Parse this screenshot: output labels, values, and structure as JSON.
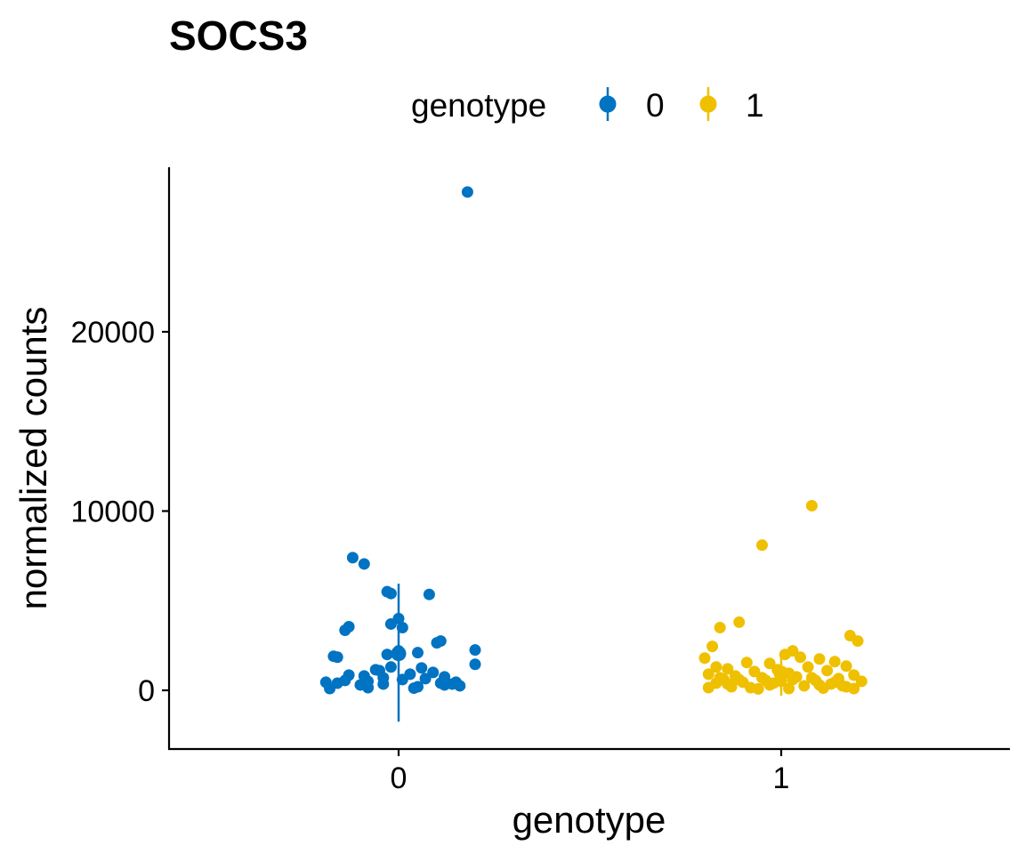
{
  "chart_data": {
    "type": "scatter",
    "title": "SOCS3",
    "xlabel": "genotype",
    "ylabel": "normalized counts",
    "categories": [
      "0",
      "1"
    ],
    "yticks": [
      0,
      10000,
      20000
    ],
    "ylim": [
      -3300,
      28700
    ],
    "grid": false,
    "legend": {
      "title": "genotype",
      "position": "top",
      "entries": [
        "0",
        "1"
      ]
    },
    "colors": {
      "0": "#0073C2",
      "1": "#EFC000"
    },
    "series": [
      {
        "name": "0",
        "points": [
          {
            "x": 0.18,
            "y": 27800
          },
          {
            "x": -0.12,
            "y": 7400
          },
          {
            "x": -0.09,
            "y": 7050
          },
          {
            "x": -0.03,
            "y": 5500
          },
          {
            "x": -0.02,
            "y": 5400
          },
          {
            "x": 0.08,
            "y": 5350
          },
          {
            "x": 0.0,
            "y": 4000
          },
          {
            "x": 0.01,
            "y": 3500
          },
          {
            "x": -0.13,
            "y": 3550
          },
          {
            "x": -0.14,
            "y": 3350
          },
          {
            "x": -0.02,
            "y": 3700
          },
          {
            "x": 0.11,
            "y": 2750
          },
          {
            "x": 0.1,
            "y": 2650
          },
          {
            "x": 0.2,
            "y": 2250
          },
          {
            "x": 0.05,
            "y": 2100
          },
          {
            "x": 0.0,
            "y": 2200
          },
          {
            "x": -0.17,
            "y": 1900
          },
          {
            "x": -0.16,
            "y": 1850
          },
          {
            "x": -0.03,
            "y": 2000
          },
          {
            "x": 0.2,
            "y": 1450
          },
          {
            "x": 0.06,
            "y": 1250
          },
          {
            "x": -0.02,
            "y": 1300
          },
          {
            "x": -0.05,
            "y": 1100
          },
          {
            "x": -0.06,
            "y": 1150
          },
          {
            "x": 0.09,
            "y": 1000
          },
          {
            "x": -0.13,
            "y": 850
          },
          {
            "x": -0.09,
            "y": 800
          },
          {
            "x": 0.03,
            "y": 900
          },
          {
            "x": 0.12,
            "y": 750
          },
          {
            "x": 0.07,
            "y": 650
          },
          {
            "x": -0.04,
            "y": 700
          },
          {
            "x": 0.01,
            "y": 600
          },
          {
            "x": -0.19,
            "y": 450
          },
          {
            "x": -0.16,
            "y": 400
          },
          {
            "x": -0.14,
            "y": 550
          },
          {
            "x": -0.1,
            "y": 300
          },
          {
            "x": -0.08,
            "y": 500
          },
          {
            "x": -0.04,
            "y": 350
          },
          {
            "x": 0.11,
            "y": 400
          },
          {
            "x": 0.15,
            "y": 450
          },
          {
            "x": 0.16,
            "y": 250
          },
          {
            "x": 0.12,
            "y": 300
          },
          {
            "x": 0.05,
            "y": 200
          },
          {
            "x": -0.18,
            "y": 100
          },
          {
            "x": -0.08,
            "y": 150
          },
          {
            "x": 0.04,
            "y": 120
          },
          {
            "x": 0.14,
            "y": 350
          }
        ],
        "summary": {
          "mean": 2050,
          "lower": -1750,
          "upper": 5950
        }
      },
      {
        "name": "1",
        "points": [
          {
            "x": 1.08,
            "y": 10300
          },
          {
            "x": 0.95,
            "y": 8100
          },
          {
            "x": 0.89,
            "y": 3800
          },
          {
            "x": 0.84,
            "y": 3500
          },
          {
            "x": 1.18,
            "y": 3050
          },
          {
            "x": 1.2,
            "y": 2750
          },
          {
            "x": 0.82,
            "y": 2450
          },
          {
            "x": 1.03,
            "y": 2200
          },
          {
            "x": 1.01,
            "y": 2000
          },
          {
            "x": 0.8,
            "y": 1800
          },
          {
            "x": 1.05,
            "y": 1850
          },
          {
            "x": 1.1,
            "y": 1750
          },
          {
            "x": 1.14,
            "y": 1600
          },
          {
            "x": 0.91,
            "y": 1550
          },
          {
            "x": 0.97,
            "y": 1500
          },
          {
            "x": 0.83,
            "y": 1300
          },
          {
            "x": 1.17,
            "y": 1350
          },
          {
            "x": 1.07,
            "y": 1300
          },
          {
            "x": 0.86,
            "y": 1200
          },
          {
            "x": 0.99,
            "y": 1150
          },
          {
            "x": 1.12,
            "y": 1100
          },
          {
            "x": 0.93,
            "y": 1050
          },
          {
            "x": 1.02,
            "y": 950
          },
          {
            "x": 0.81,
            "y": 900
          },
          {
            "x": 1.19,
            "y": 850
          },
          {
            "x": 0.88,
            "y": 800
          },
          {
            "x": 1.04,
            "y": 750
          },
          {
            "x": 0.95,
            "y": 700
          },
          {
            "x": 1.15,
            "y": 650
          },
          {
            "x": 0.85,
            "y": 600
          },
          {
            "x": 1.09,
            "y": 550
          },
          {
            "x": 1.0,
            "y": 500
          },
          {
            "x": 0.9,
            "y": 450
          },
          {
            "x": 1.21,
            "y": 500
          },
          {
            "x": 0.83,
            "y": 400
          },
          {
            "x": 1.13,
            "y": 350
          },
          {
            "x": 0.97,
            "y": 300
          },
          {
            "x": 1.06,
            "y": 250
          },
          {
            "x": 0.87,
            "y": 200
          },
          {
            "x": 1.17,
            "y": 200
          },
          {
            "x": 0.92,
            "y": 150
          },
          {
            "x": 1.02,
            "y": 100
          },
          {
            "x": 0.81,
            "y": 150
          },
          {
            "x": 1.11,
            "y": 120
          },
          {
            "x": 0.94,
            "y": 80
          },
          {
            "x": 1.19,
            "y": 100
          },
          {
            "x": 0.89,
            "y": 600
          },
          {
            "x": 1.08,
            "y": 700
          },
          {
            "x": 0.98,
            "y": 400
          },
          {
            "x": 1.14,
            "y": 450
          },
          {
            "x": 0.86,
            "y": 350
          },
          {
            "x": 1.03,
            "y": 600
          },
          {
            "x": 0.96,
            "y": 550
          },
          {
            "x": 1.16,
            "y": 250
          },
          {
            "x": 0.84,
            "y": 700
          },
          {
            "x": 1.1,
            "y": 300
          }
        ],
        "summary": {
          "mean": 950,
          "lower": -300,
          "upper": 2150
        }
      }
    ]
  }
}
